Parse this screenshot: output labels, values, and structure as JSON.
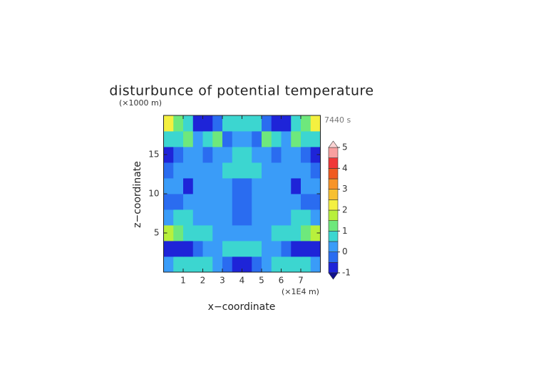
{
  "chart_data": {
    "type": "contour",
    "title": "disturbunce of potential temperature",
    "y_unit": "(×1000 m)",
    "x_unit": "(×1E4 m)",
    "time_label": "7440 s",
    "x_label": "x−coordinate",
    "y_label": "z−coordinate",
    "xlim": [
      0,
      8
    ],
    "ylim": [
      0,
      20
    ],
    "xticks": [
      1,
      2,
      3,
      4,
      5,
      6,
      7
    ],
    "yticks": [
      5,
      10,
      15
    ],
    "x": [
      0.25,
      0.75,
      1.25,
      1.75,
      2.25,
      2.75,
      3.25,
      3.75,
      4.25,
      4.75,
      5.25,
      5.75,
      6.25,
      6.75,
      7.25,
      7.75
    ],
    "y": [
      1,
      3,
      5,
      7,
      9,
      11,
      13,
      15,
      17,
      19
    ],
    "z": [
      [
        0.2,
        0.7,
        0.7,
        0.7,
        0.7,
        0.2,
        -0.3,
        -0.8,
        -0.8,
        -0.3,
        0.2,
        0.7,
        0.7,
        0.7,
        0.7,
        0.2
      ],
      [
        -0.8,
        -0.8,
        -0.8,
        -0.3,
        0.2,
        0.2,
        0.7,
        0.7,
        0.7,
        0.7,
        0.2,
        0.2,
        -0.3,
        -0.8,
        -0.8,
        -0.8
      ],
      [
        1.7,
        1.2,
        0.7,
        0.7,
        0.7,
        0.2,
        0.2,
        0.2,
        0.2,
        0.2,
        0.2,
        0.7,
        0.7,
        0.7,
        1.2,
        1.7
      ],
      [
        0.2,
        0.7,
        0.7,
        0.2,
        0.2,
        0.2,
        0.2,
        -0.3,
        -0.3,
        0.2,
        0.2,
        0.2,
        0.2,
        0.7,
        0.7,
        0.2
      ],
      [
        -0.3,
        -0.3,
        0.2,
        0.2,
        0.2,
        0.2,
        0.2,
        -0.3,
        -0.3,
        0.2,
        0.2,
        0.2,
        0.2,
        0.2,
        -0.3,
        -0.3
      ],
      [
        0.2,
        0.2,
        -0.8,
        0.2,
        0.2,
        0.2,
        0.2,
        -0.3,
        -0.3,
        0.2,
        0.2,
        0.2,
        0.2,
        -0.8,
        0.2,
        0.2
      ],
      [
        -0.3,
        0.2,
        0.2,
        0.2,
        0.2,
        0.2,
        0.7,
        0.7,
        0.7,
        0.7,
        0.2,
        0.2,
        0.2,
        0.2,
        0.2,
        -0.3
      ],
      [
        -0.8,
        -0.3,
        0.2,
        0.2,
        -0.3,
        0.2,
        0.2,
        0.7,
        0.7,
        0.2,
        0.2,
        -0.3,
        0.2,
        0.2,
        -0.3,
        -0.8
      ],
      [
        0.7,
        0.7,
        1.2,
        0.2,
        0.7,
        1.2,
        -0.3,
        0.2,
        0.2,
        -0.3,
        1.2,
        0.7,
        0.2,
        1.2,
        0.7,
        0.7
      ],
      [
        2.2,
        1.2,
        0.7,
        -0.8,
        -0.8,
        -0.3,
        0.7,
        0.7,
        0.7,
        0.7,
        -0.3,
        -0.8,
        -0.8,
        0.7,
        1.2,
        2.2
      ]
    ],
    "levels": [
      -1,
      -0.5,
      0,
      0.5,
      1,
      1.5,
      2,
      2.5,
      3,
      3.5,
      4,
      4.5,
      5
    ],
    "colors": [
      "#1e24d8",
      "#2a6cf0",
      "#3a9cf8",
      "#3cd6d0",
      "#6ee87c",
      "#b8f03c",
      "#f4f040",
      "#f8c030",
      "#f89428",
      "#f05a20",
      "#f03838",
      "#f8a0a0"
    ],
    "under_color": "#10108c",
    "over_color": "#fbd4d4",
    "cbar_ticks": [
      -1,
      0,
      1,
      2,
      3,
      4,
      5
    ]
  }
}
